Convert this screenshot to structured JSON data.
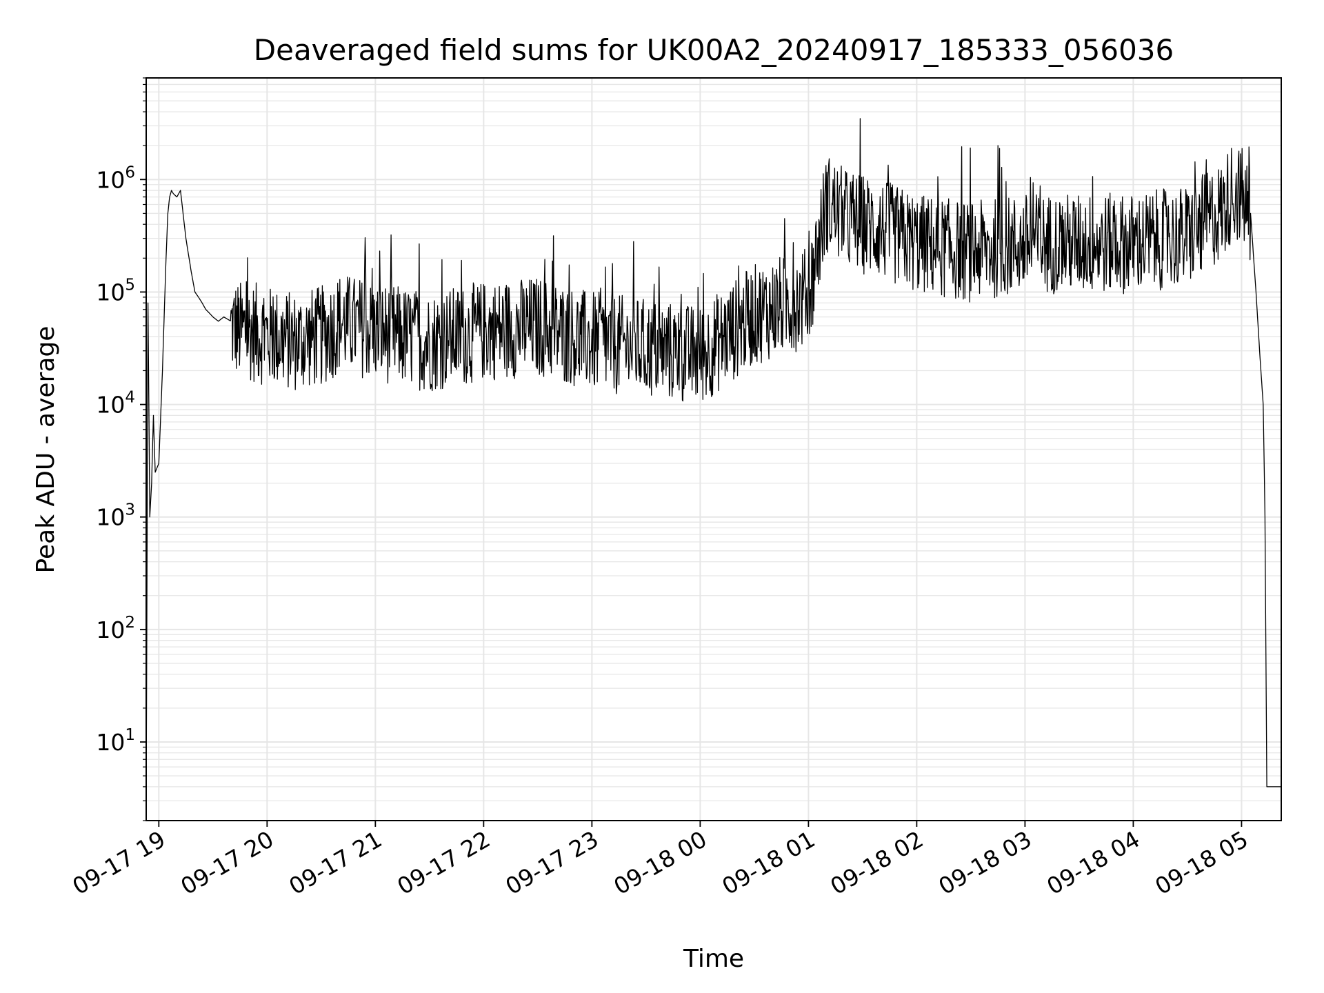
{
  "chart_data": {
    "type": "line",
    "title": "Deaveraged field sums for UK00A2_20240917_185333_056036",
    "xlabel": "Time",
    "ylabel": "Peak ADU - average",
    "yscale": "log",
    "ylim": [
      2,
      8000000
    ],
    "xlim": [
      "2024-09-17 18:53",
      "2024-09-18 05:22"
    ],
    "grid": true,
    "line_color": "#000000",
    "grid_color": "#e6e6e6",
    "x_ticks": [
      {
        "value": "2024-09-17 19:00",
        "label": "09-17 19"
      },
      {
        "value": "2024-09-17 20:00",
        "label": "09-17 20"
      },
      {
        "value": "2024-09-17 21:00",
        "label": "09-17 21"
      },
      {
        "value": "2024-09-17 22:00",
        "label": "09-17 22"
      },
      {
        "value": "2024-09-17 23:00",
        "label": "09-17 23"
      },
      {
        "value": "2024-09-18 00:00",
        "label": "09-18 00"
      },
      {
        "value": "2024-09-18 01:00",
        "label": "09-18 01"
      },
      {
        "value": "2024-09-18 02:00",
        "label": "09-18 02"
      },
      {
        "value": "2024-09-18 03:00",
        "label": "09-18 03"
      },
      {
        "value": "2024-09-18 04:00",
        "label": "09-18 04"
      },
      {
        "value": "2024-09-18 05:00",
        "label": "09-18 05"
      }
    ],
    "y_ticks": [
      {
        "value": 10,
        "base": "10",
        "exp": "1"
      },
      {
        "value": 100,
        "base": "10",
        "exp": "2"
      },
      {
        "value": 1000,
        "base": "10",
        "exp": "3"
      },
      {
        "value": 10000,
        "base": "10",
        "exp": "4"
      },
      {
        "value": 100000,
        "base": "10",
        "exp": "5"
      },
      {
        "value": 1000000,
        "base": "10",
        "exp": "6"
      }
    ],
    "series": [
      {
        "x": [
          "2024-09-17 18:53",
          "2024-09-17 18:54",
          "2024-09-17 18:55",
          "2024-09-17 18:56",
          "2024-09-17 18:57",
          "2024-09-17 18:58",
          "2024-09-17 19:00",
          "2024-09-17 19:02",
          "2024-09-17 19:04",
          "2024-09-17 19:05",
          "2024-09-17 19:06",
          "2024-09-17 19:07",
          "2024-09-17 19:08",
          "2024-09-17 19:10",
          "2024-09-17 19:12",
          "2024-09-17 19:15",
          "2024-09-17 19:18",
          "2024-09-17 19:20",
          "2024-09-17 19:22",
          "2024-09-17 19:24",
          "2024-09-17 19:26",
          "2024-09-17 19:28",
          "2024-09-17 19:30",
          "2024-09-17 19:33",
          "2024-09-17 19:36",
          "2024-09-17 19:40",
          "2024-09-17 19:45",
          "2024-09-17 19:50",
          "2024-09-17 20:00",
          "2024-09-17 20:15",
          "2024-09-17 20:30",
          "2024-09-17 20:35",
          "2024-09-17 20:40",
          "2024-09-17 21:00",
          "2024-09-17 21:30",
          "2024-09-17 22:00",
          "2024-09-17 22:30",
          "2024-09-17 23:00",
          "2024-09-17 23:30",
          "2024-09-18 00:00",
          "2024-09-18 00:30",
          "2024-09-18 01:00",
          "2024-09-18 01:10",
          "2024-09-18 01:20",
          "2024-09-18 01:40",
          "2024-09-18 02:00",
          "2024-09-18 02:30",
          "2024-09-18 03:00",
          "2024-09-18 03:30",
          "2024-09-18 04:00",
          "2024-09-18 04:30",
          "2024-09-18 04:50",
          "2024-09-18 04:55",
          "2024-09-18 05:00",
          "2024-09-18 05:05",
          "2024-09-18 05:08",
          "2024-09-18 05:10",
          "2024-09-18 05:12",
          "2024-09-18 05:13",
          "2024-09-18 05:14",
          "2024-09-18 05:15",
          "2024-09-18 05:16",
          "2024-09-18 05:22"
        ],
        "y": [
          3,
          80000,
          1000,
          2000,
          8000,
          2500,
          3000,
          20000,
          200000,
          500000,
          700000,
          800000,
          750000,
          700000,
          800000,
          300000,
          150000,
          100000,
          90000,
          80000,
          70000,
          65000,
          60000,
          55000,
          60000,
          55000,
          50000,
          50000,
          45000,
          40000,
          45000,
          50000,
          60000,
          50000,
          40000,
          50000,
          55000,
          40000,
          35000,
          30000,
          70000,
          100000,
          700000,
          500000,
          400000,
          300000,
          250000,
          300000,
          300000,
          300000,
          350000,
          600000,
          900000,
          800000,
          500000,
          100000,
          30000,
          10000,
          1000,
          4,
          4,
          4,
          4
        ]
      }
    ]
  }
}
